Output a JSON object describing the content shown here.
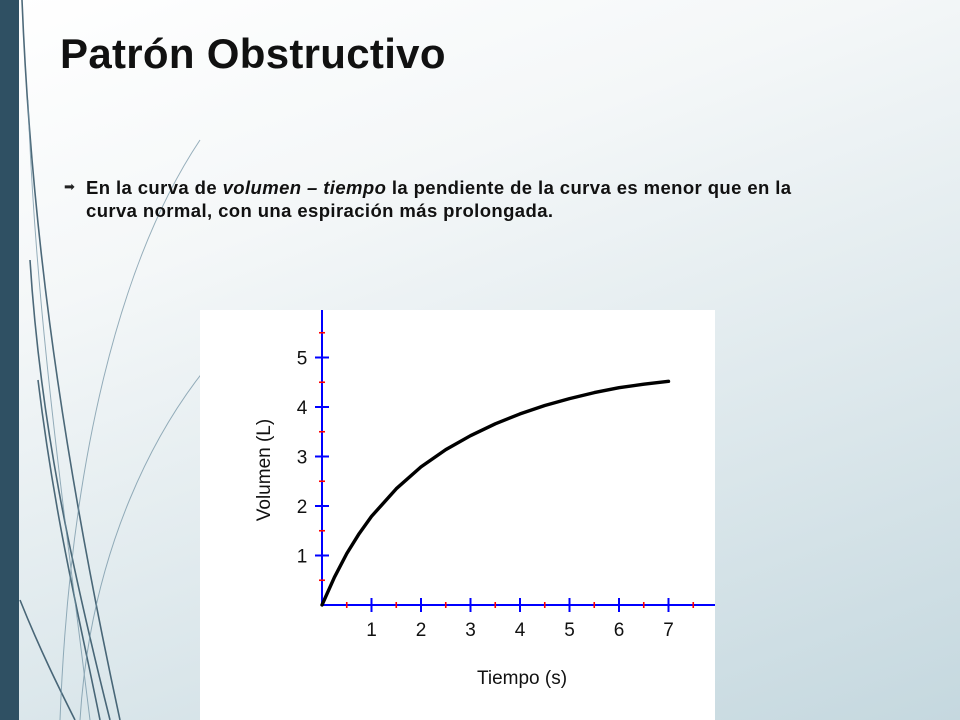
{
  "slide": {
    "title": "Patrón Obstructivo",
    "bullet": {
      "part1": "En la curva de ",
      "italic": "volumen – tiempo",
      "part2": "  la pendiente de la curva es menor que en la curva normal, con una espiración más prolongada."
    }
  },
  "colors": {
    "sidebar": "#2f5063",
    "axis": "#0000ff",
    "minor_ticks": "#ff0000",
    "curve": "#000000"
  },
  "chart_data": {
    "type": "line",
    "xlabel": "Tiempo (s)",
    "ylabel": "Volumen (L)",
    "xlim": [
      0,
      7.8
    ],
    "ylim": [
      0,
      6
    ],
    "x_ticks": [
      1,
      2,
      3,
      4,
      5,
      6,
      7
    ],
    "y_ticks": [
      1,
      2,
      3,
      4,
      5
    ],
    "grid": false,
    "series": [
      {
        "x": [
          0,
          0.25,
          0.5,
          0.75,
          1,
          1.5,
          2,
          2.5,
          3,
          3.5,
          4,
          4.5,
          5,
          5.5,
          6,
          6.5,
          7
        ],
        "values": [
          0,
          0.56,
          1.04,
          1.44,
          1.79,
          2.35,
          2.79,
          3.14,
          3.42,
          3.66,
          3.86,
          4.03,
          4.17,
          4.29,
          4.39,
          4.46,
          4.52
        ]
      }
    ]
  }
}
